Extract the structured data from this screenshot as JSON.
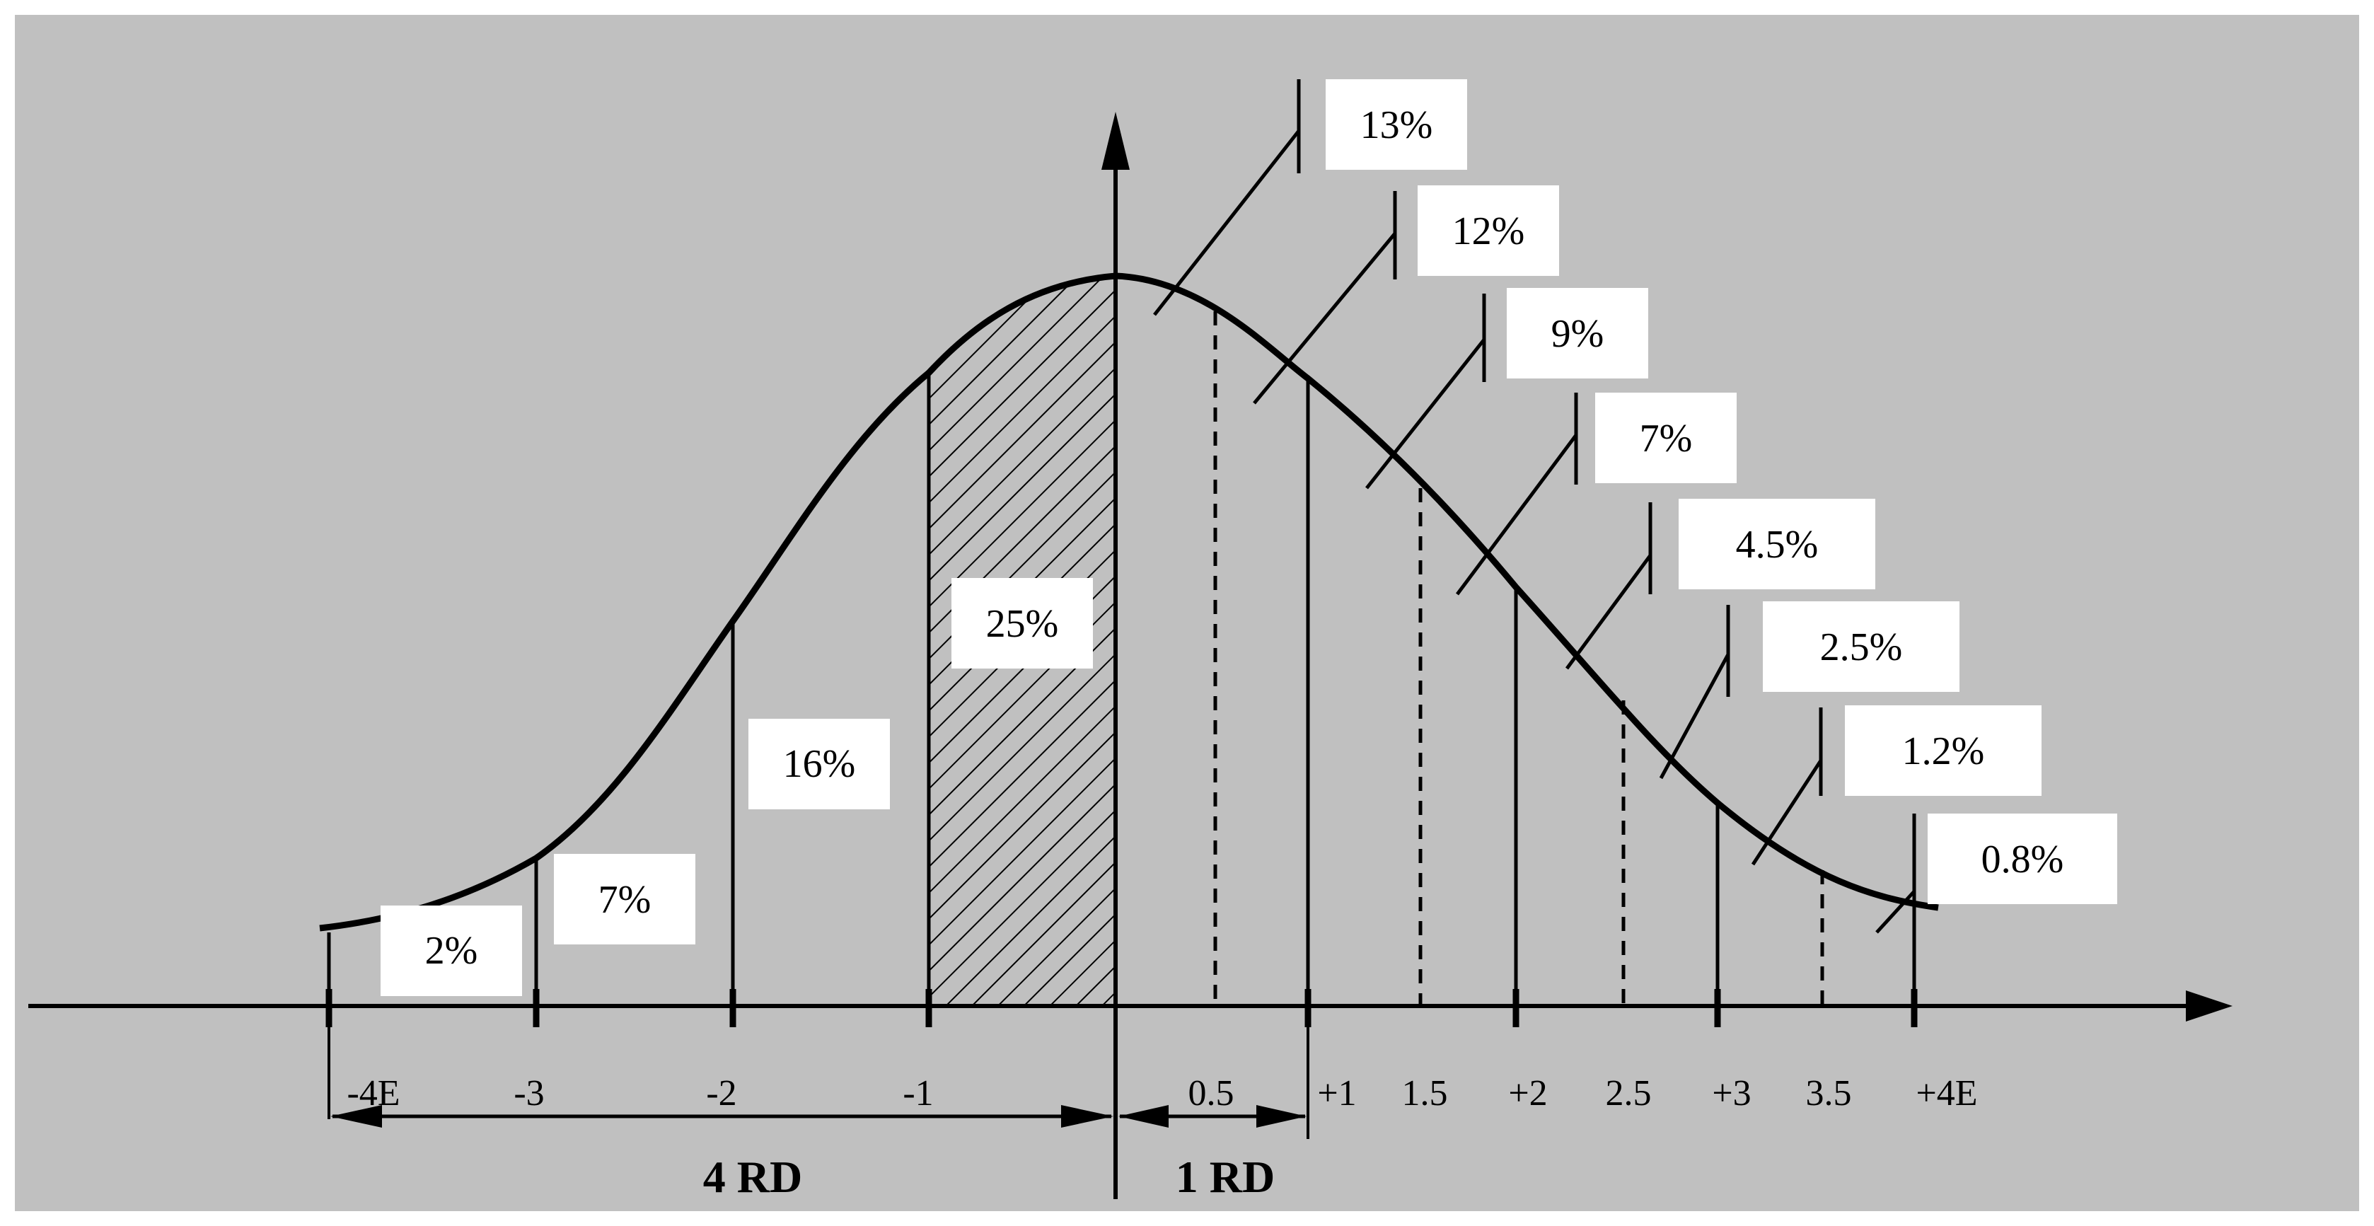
{
  "colors": {
    "background": "#c0c0c0",
    "ink": "#000000",
    "label_box": "#ffffff"
  },
  "left_labels": [
    "2%",
    "7%",
    "16%",
    "25%"
  ],
  "right_labels": [
    "13%",
    "12%",
    "9%",
    "7%",
    "4.5%",
    "2.5%",
    "1.2%",
    "0.8%"
  ],
  "ticks": [
    "-4E",
    "-3",
    "-2",
    "-1",
    "0.5",
    "+1",
    "1.5",
    "+2",
    "2.5",
    "+3",
    "3.5",
    "+4E"
  ],
  "spans": {
    "left": "4 RD",
    "right": "1 RD"
  }
}
